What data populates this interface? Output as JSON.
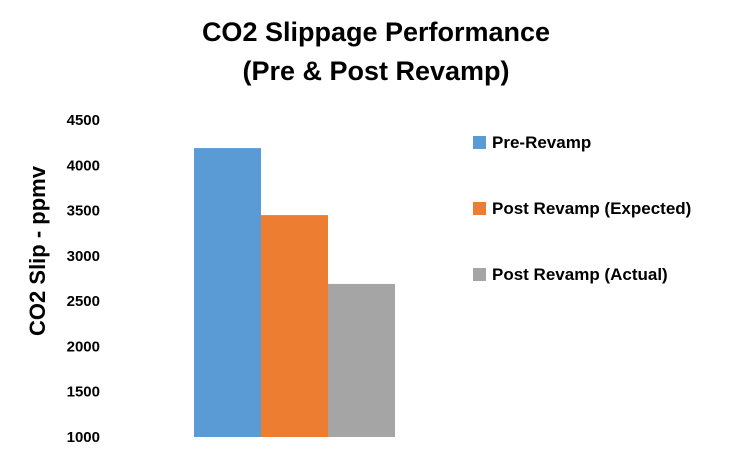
{
  "chart_data": {
    "type": "bar",
    "title": "CO2 Slippage Performance",
    "subtitle": "(Pre & Post Revamp)",
    "xlabel": "",
    "ylabel": "CO2 Slip - ppmv",
    "ylim": [
      1000,
      4500
    ],
    "yticks": [
      1000,
      1500,
      2000,
      2500,
      3000,
      3500,
      4000,
      4500
    ],
    "grid": false,
    "legend_position": "right",
    "series": [
      {
        "name": "Pre-Revamp",
        "color": "#5b9bd5",
        "value": 4190
      },
      {
        "name": "Post Revamp (Expected)",
        "color": "#ed7d31",
        "value": 3450
      },
      {
        "name": "Post Revamp (Actual)",
        "color": "#a5a5a5",
        "value": 2690
      }
    ]
  }
}
